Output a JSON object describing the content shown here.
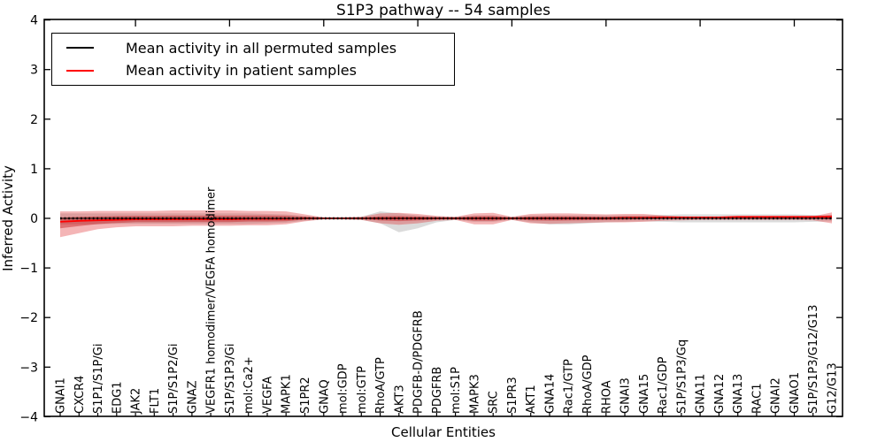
{
  "figure": {
    "title": "S1P3 pathway -- 54 samples",
    "xlabel": "Cellular Entities",
    "ylabel": "Inferred Activity"
  },
  "legend": {
    "position": "upper left",
    "items": [
      {
        "label": "Mean activity in all permuted samples",
        "color": "#000000"
      },
      {
        "label": "Mean activity in patient samples",
        "color": "#ff0000"
      }
    ]
  },
  "chart_data": {
    "type": "line",
    "title": "S1P3 pathway -- 54 samples",
    "xlabel": "Cellular Entities",
    "ylabel": "Inferred Activity",
    "ylim": [
      -4,
      4
    ],
    "yticks": [
      4,
      3,
      2,
      1,
      0,
      -1,
      -2,
      -3,
      -4
    ],
    "grid": false,
    "legend_position": "upper left",
    "colors": {
      "permuted_line": "#000000",
      "patient_line": "#ff0000",
      "permuted_band": "rgba(125,125,125,0.28)",
      "patient_band": "rgba(222,30,32,0.33)",
      "patient_band_core": "rgba(190,12,14,0.40)"
    },
    "categories": [
      "GNAI1",
      "CXCR4",
      "S1P1/S1P/Gi",
      "EDG1",
      "JAK2",
      "FLT1",
      "S1P/S1P2/Gi",
      "GNAZ",
      "VEGFR1 homodimer/VEGFA homodimer",
      "S1P/S1P3/Gi",
      "mol:Ca2+",
      "VEGFA",
      "MAPK1",
      "S1PR2",
      "GNAQ",
      "mol:GDP",
      "mol:GTP",
      "RhoA/GTP",
      "AKT3",
      "PDGFB-D/PDGFRB",
      "PDGFRB",
      "mol:S1P",
      "MAPK3",
      "SRC",
      "S1PR3",
      "AKT1",
      "GNA14",
      "Rac1/GTP",
      "RhoA/GDP",
      "RHOA",
      "GNAI3",
      "GNA15",
      "Rac1/GDP",
      "S1P/S1P3/Gq",
      "GNA11",
      "GNA12",
      "GNA13",
      "RAC1",
      "GNAI2",
      "GNAO1",
      "S1P/S1P3/G12/G13",
      "G12/G13"
    ],
    "series": [
      {
        "name": "Mean activity in all permuted samples",
        "color": "#000000",
        "values": [
          0,
          0,
          0,
          0,
          0,
          0,
          0,
          0,
          0,
          0,
          0,
          0,
          0,
          0,
          0,
          0,
          0,
          0,
          0,
          0,
          0,
          0,
          0,
          0,
          0,
          0,
          0,
          0,
          0,
          0,
          0,
          0,
          0,
          0,
          0,
          0,
          0,
          0,
          0,
          0,
          0,
          0
        ],
        "band_upper": [
          0.1,
          0.1,
          0.1,
          0.1,
          0.1,
          0.1,
          0.1,
          0.1,
          0.1,
          0.1,
          0.1,
          0.09,
          0.08,
          0.05,
          0.02,
          0.02,
          0.03,
          0.14,
          0.1,
          0.06,
          0.04,
          0.03,
          0.06,
          0.06,
          0.03,
          0.06,
          0.06,
          0.06,
          0.06,
          0.06,
          0.06,
          0.06,
          0.07,
          0.08,
          0.08,
          0.08,
          0.08,
          0.08,
          0.08,
          0.08,
          0.07,
          0.06
        ],
        "band_lower": [
          -0.12,
          -0.12,
          -0.12,
          -0.11,
          -0.11,
          -0.11,
          -0.11,
          -0.11,
          -0.11,
          -0.11,
          -0.11,
          -0.1,
          -0.09,
          -0.05,
          -0.02,
          -0.02,
          -0.03,
          -0.1,
          -0.28,
          -0.2,
          -0.08,
          -0.03,
          -0.07,
          -0.07,
          -0.03,
          -0.08,
          -0.12,
          -0.12,
          -0.1,
          -0.08,
          -0.07,
          -0.06,
          -0.07,
          -0.08,
          -0.08,
          -0.08,
          -0.08,
          -0.08,
          -0.08,
          -0.08,
          -0.07,
          -0.06
        ]
      },
      {
        "name": "Mean activity in patient samples",
        "color": "#ff0000",
        "values": [
          -0.07,
          -0.05,
          -0.04,
          -0.03,
          -0.02,
          -0.02,
          -0.02,
          -0.02,
          -0.02,
          -0.02,
          -0.01,
          -0.01,
          -0.01,
          0,
          0,
          0,
          0,
          0,
          0,
          0,
          0,
          0,
          0,
          0,
          0,
          0,
          0,
          0,
          0,
          0,
          0.01,
          0.01,
          0.02,
          0.02,
          0.02,
          0.02,
          0.03,
          0.03,
          0.03,
          0.03,
          0.03,
          0.03
        ],
        "band_upper": [
          0.14,
          0.14,
          0.15,
          0.15,
          0.15,
          0.15,
          0.16,
          0.16,
          0.16,
          0.16,
          0.15,
          0.15,
          0.14,
          0.08,
          0.02,
          0.02,
          0.03,
          0.1,
          0.11,
          0.09,
          0.05,
          0.03,
          0.1,
          0.11,
          0.03,
          0.09,
          0.1,
          0.1,
          0.09,
          0.08,
          0.09,
          0.09,
          0.06,
          0.04,
          0.03,
          0.03,
          0.03,
          0.03,
          0.03,
          0.03,
          0.04,
          0.12
        ],
        "band_lower": [
          -0.38,
          -0.3,
          -0.22,
          -0.18,
          -0.16,
          -0.16,
          -0.16,
          -0.15,
          -0.15,
          -0.15,
          -0.14,
          -0.14,
          -0.12,
          -0.06,
          -0.02,
          -0.02,
          -0.03,
          -0.1,
          -0.13,
          -0.1,
          -0.05,
          -0.03,
          -0.12,
          -0.12,
          -0.03,
          -0.1,
          -0.11,
          -0.1,
          -0.09,
          -0.08,
          -0.08,
          -0.07,
          -0.05,
          -0.04,
          -0.03,
          -0.03,
          -0.03,
          -0.03,
          -0.03,
          -0.03,
          -0.04,
          -0.1
        ]
      }
    ]
  }
}
